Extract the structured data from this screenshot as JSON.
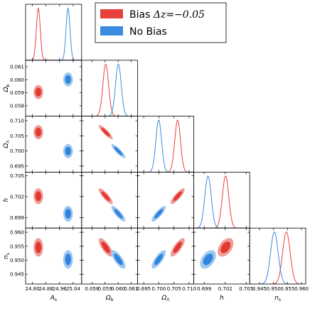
{
  "chart_data": {
    "type": "corner",
    "parameters": [
      {
        "id": "As",
        "label": "A",
        "sub": "s",
        "range": [
          24.76,
          25.09
        ],
        "ticks": [
          "24.80",
          "24.88",
          "24.96",
          "25.04"
        ]
      },
      {
        "id": "Ob",
        "label": "Ω",
        "sub": "b",
        "range": [
          0.0572,
          0.0615
        ],
        "ticks": [
          "0.058",
          "0.059",
          "0.060",
          "0.061"
        ]
      },
      {
        "id": "OL",
        "label": "Ω",
        "sub": "Λ",
        "range": [
          0.693,
          0.7115
        ],
        "ticks": [
          "0.695",
          "0.700",
          "0.705",
          "0.710"
        ]
      },
      {
        "id": "h",
        "label": "h",
        "sub": "",
        "range": [
          0.6975,
          0.7055
        ],
        "ticks": [
          "0.699",
          "0.702",
          "0.705"
        ]
      },
      {
        "id": "ns",
        "label": "n",
        "sub": "s",
        "range": [
          0.9415,
          0.9615
        ],
        "ticks": [
          "0.945",
          "0.950",
          "0.955",
          "0.960"
        ]
      }
    ],
    "legend": {
      "placement": "top-right",
      "entries": [
        {
          "name": "Bias ",
          "math": "Δz=−0.05",
          "color": "#e8413b"
        },
        {
          "name": "No Bias",
          "math": "",
          "color": "#3a8be0"
        }
      ]
    },
    "series": [
      {
        "key": "bias",
        "color": "#e8413b",
        "contour_inner": "#e2382f",
        "contour_outer": "#ef9b98",
        "mean": [
          24.835,
          0.05905,
          0.7062,
          0.70205,
          0.9546
        ],
        "sigma": [
          0.0115,
          0.00022,
          0.00095,
          0.00046,
          0.00135
        ],
        "corr": [
          [
            1,
            0,
            0,
            0,
            0
          ],
          [
            0,
            1,
            -0.88,
            -0.85,
            -0.75
          ],
          [
            0,
            -0.88,
            1,
            0.85,
            0.78
          ],
          [
            0,
            -0.85,
            0.85,
            1,
            0.45
          ],
          [
            0,
            -0.75,
            0.78,
            0.45,
            1
          ]
        ]
      },
      {
        "key": "nobias",
        "color": "#3a8be0",
        "contour_inner": "#2e85dc",
        "contour_outer": "#9ec6ee",
        "mean": [
          25.01,
          0.06002,
          0.69995,
          0.69955,
          0.9503
        ],
        "sigma": [
          0.0115,
          0.00022,
          0.00095,
          0.00046,
          0.00135
        ],
        "corr": [
          [
            1,
            0,
            0,
            0,
            0
          ],
          [
            0,
            1,
            -0.88,
            -0.85,
            -0.75
          ],
          [
            0,
            -0.88,
            1,
            0.85,
            0.78
          ],
          [
            0,
            -0.85,
            0.85,
            1,
            0.45
          ],
          [
            0,
            -0.75,
            0.78,
            0.45,
            1
          ]
        ]
      }
    ]
  }
}
